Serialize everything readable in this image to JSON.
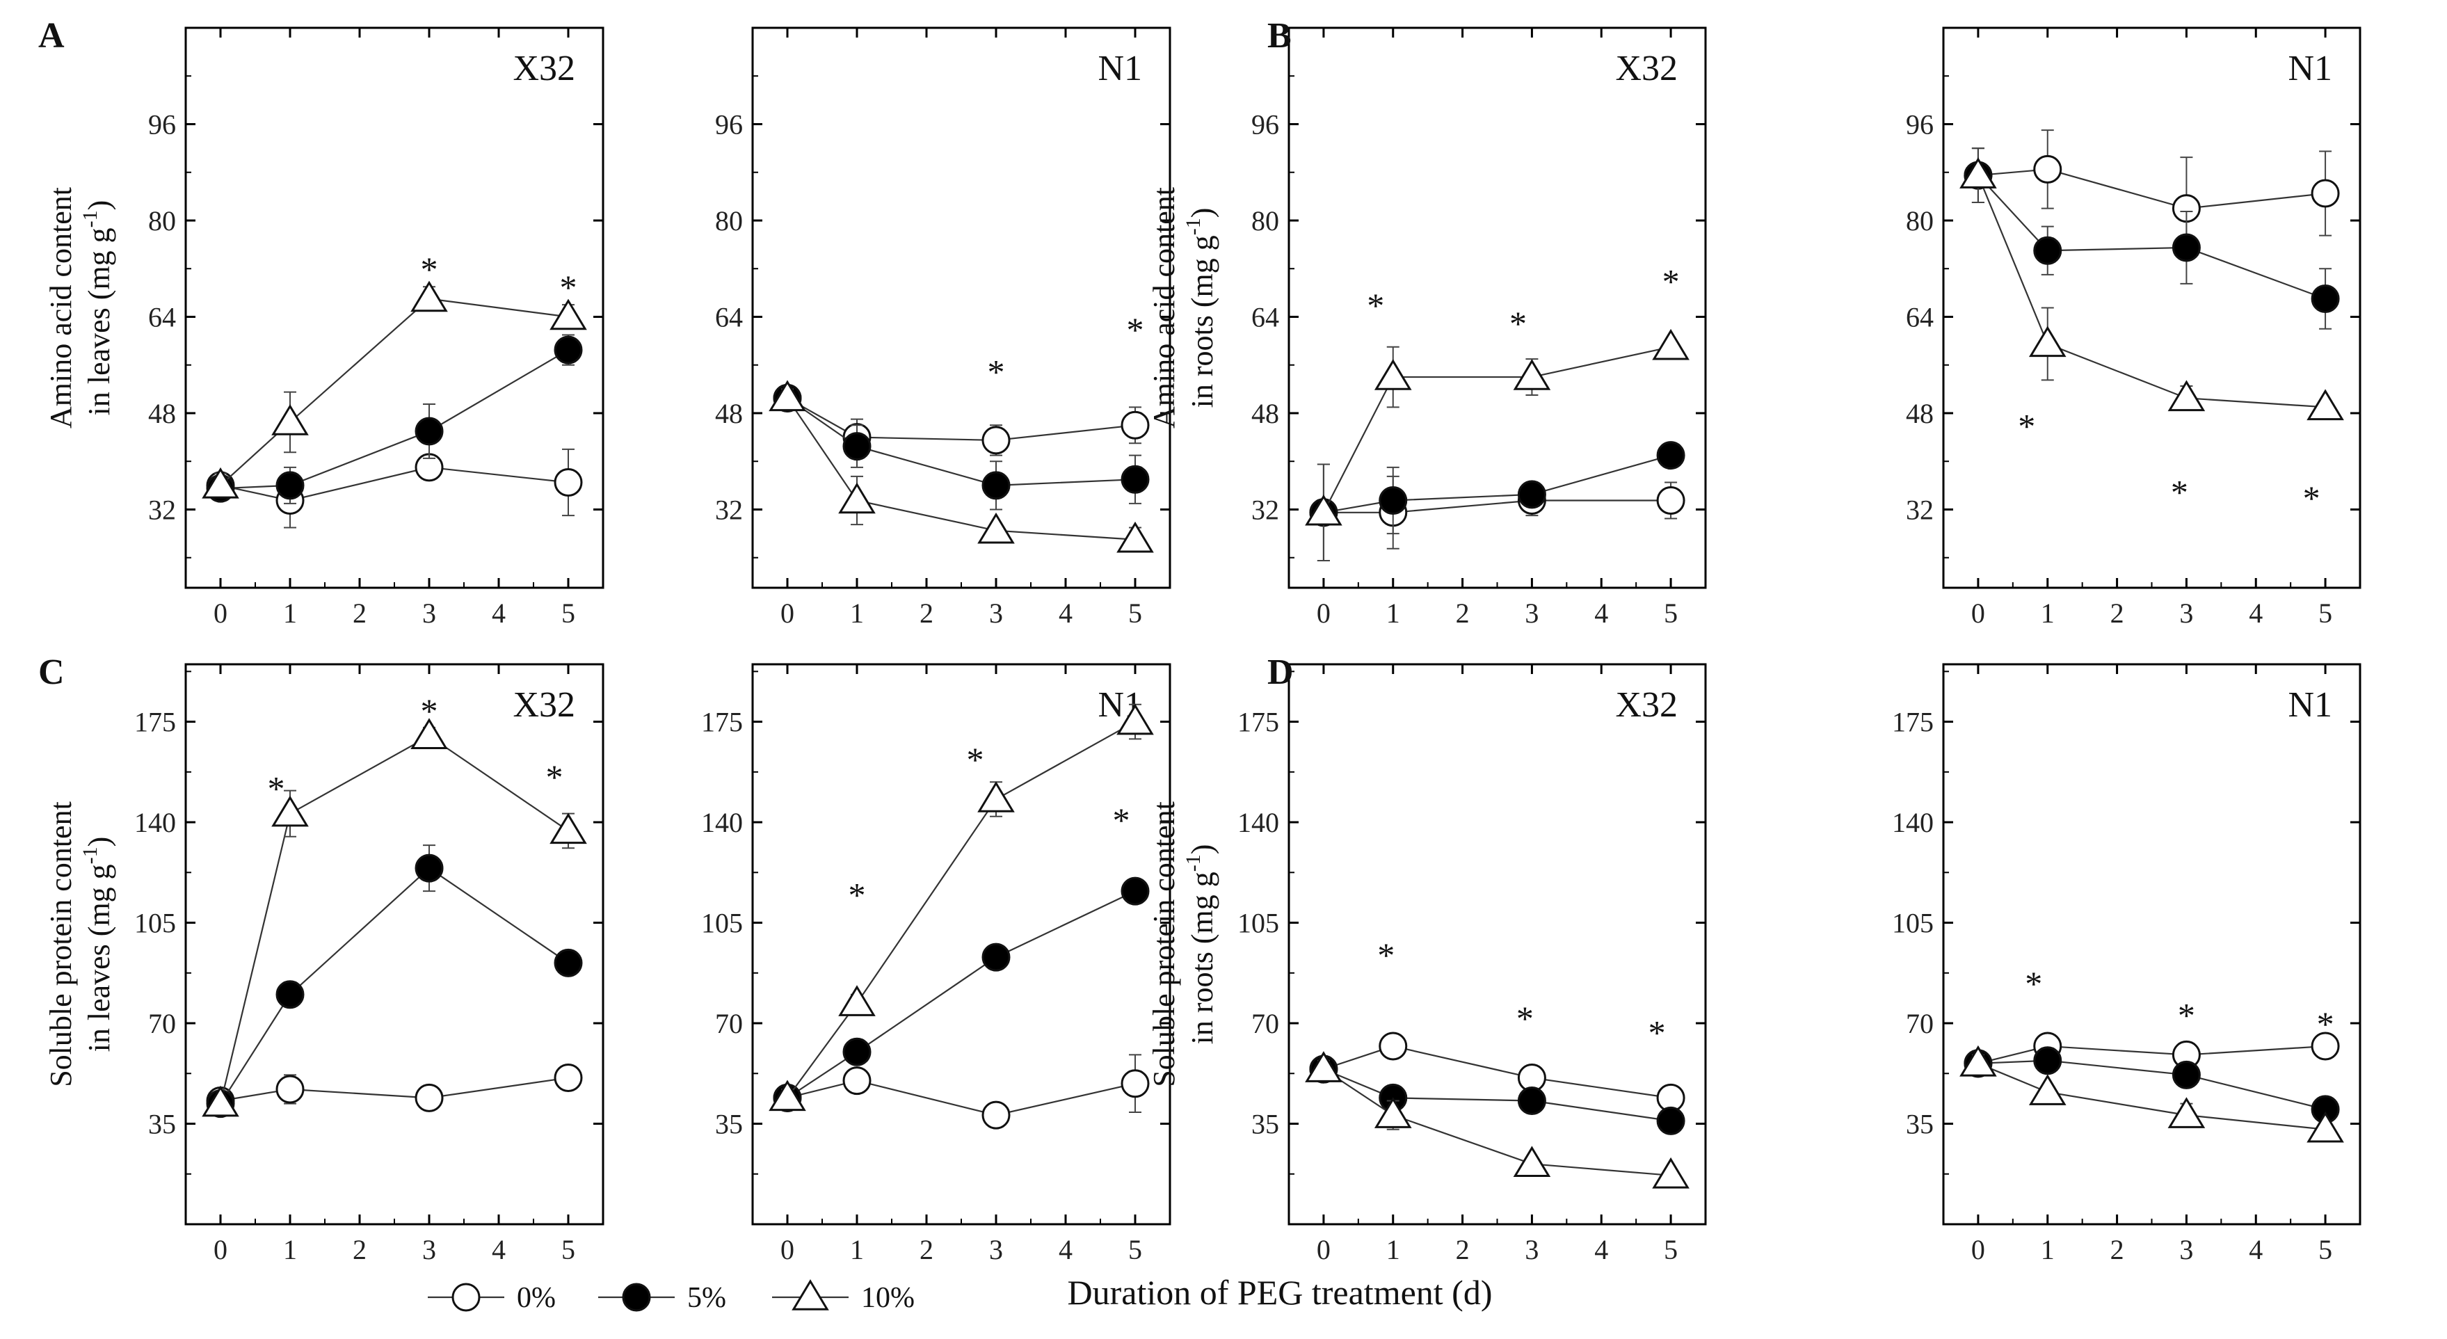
{
  "figure": {
    "x_axis_label": "Duration of PEG treatment (d)",
    "legend": [
      {
        "label": "0%",
        "marker": "open-circle"
      },
      {
        "label": "5%",
        "marker": "filled-circle"
      },
      {
        "label": "10%",
        "marker": "open-triangle"
      }
    ],
    "colors": {
      "line": "#333333",
      "marker_fill": "#000000",
      "axis": "#000000"
    }
  },
  "chart_data": [
    {
      "type": "line",
      "panel": "A",
      "title": "X32",
      "ylabel_line1": "Amino acid content",
      "ylabel_line2": "in leaves (mg g",
      "ylabel_sup": "-1",
      "ylabel_end": ")",
      "x": [
        0,
        1,
        3,
        5
      ],
      "xticks": [
        "0",
        "1",
        "2",
        "3",
        "4",
        "5"
      ],
      "xlim": [
        -0.5,
        5.5
      ],
      "yticks": [
        32,
        48,
        64,
        80,
        96
      ],
      "ylim": [
        19,
        112
      ],
      "series": [
        {
          "name": "0%",
          "values": [
            36,
            33.5,
            39,
            36.5
          ],
          "err": [
            1.5,
            4.5,
            2,
            5.5
          ]
        },
        {
          "name": "5%",
          "values": [
            35.5,
            36,
            45,
            58.5
          ],
          "err": [
            1.5,
            3,
            4.5,
            2.5
          ]
        },
        {
          "name": "10%",
          "values": [
            36,
            46.5,
            67,
            64
          ],
          "err": [
            2,
            5,
            2,
            2
          ]
        }
      ],
      "significance": [
        {
          "x": 3,
          "y": 72,
          "label": "*"
        },
        {
          "x": 5,
          "y": 69,
          "label": "*"
        }
      ]
    },
    {
      "type": "line",
      "panel": "",
      "title": "N1",
      "x": [
        0,
        1,
        3,
        5
      ],
      "xticks": [
        "0",
        "1",
        "2",
        "3",
        "4",
        "5"
      ],
      "xlim": [
        -0.5,
        5.5
      ],
      "yticks": [
        32,
        48,
        64,
        80,
        96
      ],
      "ylim": [
        19,
        112
      ],
      "series": [
        {
          "name": "0%",
          "values": [
            50.5,
            44,
            43.5,
            46
          ],
          "err": [
            1.5,
            3,
            2.5,
            3
          ]
        },
        {
          "name": "5%",
          "values": [
            50.5,
            42.5,
            36,
            37
          ],
          "err": [
            1.5,
            3.5,
            4,
            4
          ]
        },
        {
          "name": "10%",
          "values": [
            50.5,
            33.5,
            28.5,
            27
          ],
          "err": [
            1.5,
            4,
            1,
            2
          ]
        }
      ],
      "significance": [
        {
          "x": 3,
          "y": 55,
          "label": "*"
        },
        {
          "x": 5,
          "y": 62,
          "label": "*"
        }
      ]
    },
    {
      "type": "line",
      "panel": "B",
      "title": "X32",
      "ylabel_line1": "Amino acid content",
      "ylabel_line2": "in roots (mg g",
      "ylabel_sup": "-1",
      "ylabel_end": ")",
      "x": [
        0,
        1,
        3,
        5
      ],
      "xticks": [
        "0",
        "1",
        "2",
        "3",
        "4",
        "5"
      ],
      "xlim": [
        -0.5,
        5.5
      ],
      "yticks": [
        32,
        48,
        64,
        80,
        96
      ],
      "ylim": [
        19,
        112
      ],
      "series": [
        {
          "name": "0%",
          "values": [
            31.5,
            31.5,
            33.5,
            33.5
          ],
          "err": [
            8,
            6,
            2.5,
            3
          ]
        },
        {
          "name": "5%",
          "values": [
            31.5,
            33.5,
            34.5,
            41
          ],
          "err": [
            8,
            5.5,
            2,
            1.5
          ]
        },
        {
          "name": "10%",
          "values": [
            31.5,
            54,
            54,
            59
          ],
          "err": [
            8,
            5,
            3,
            1
          ]
        }
      ],
      "significance": [
        {
          "x": 0.75,
          "y": 66,
          "label": "*"
        },
        {
          "x": 2.8,
          "y": 63,
          "label": "*"
        },
        {
          "x": 5,
          "y": 70,
          "label": "*"
        }
      ]
    },
    {
      "type": "line",
      "panel": "",
      "title": "N1",
      "x": [
        0,
        1,
        3,
        5
      ],
      "xticks": [
        "0",
        "1",
        "2",
        "3",
        "4",
        "5"
      ],
      "xlim": [
        -0.5,
        5.5
      ],
      "yticks": [
        32,
        48,
        64,
        80,
        96
      ],
      "ylim": [
        19,
        112
      ],
      "series": [
        {
          "name": "0%",
          "values": [
            87.5,
            88.5,
            82,
            84.5
          ],
          "err": [
            4.5,
            6.5,
            8.5,
            7
          ]
        },
        {
          "name": "5%",
          "values": [
            87.5,
            75,
            75.5,
            67
          ],
          "err": [
            4.5,
            4,
            6,
            5
          ]
        },
        {
          "name": "10%",
          "values": [
            87.5,
            59.5,
            50.5,
            49
          ],
          "err": [
            4.5,
            6,
            2,
            1
          ]
        }
      ],
      "significance": [
        {
          "x": 0.7,
          "y": 46,
          "label": "*"
        },
        {
          "x": 2.9,
          "y": 35,
          "label": "*"
        },
        {
          "x": 4.8,
          "y": 34,
          "label": "*"
        }
      ]
    },
    {
      "type": "line",
      "panel": "C",
      "title": "X32",
      "ylabel_line1": "Soluble protein content",
      "ylabel_line2": "in leaves (mg g",
      "ylabel_sup": "-1",
      "ylabel_end": ")",
      "x": [
        0,
        1,
        3,
        5
      ],
      "xticks": [
        "0",
        "1",
        "2",
        "3",
        "4",
        "5"
      ],
      "xlim": [
        -0.5,
        5.5
      ],
      "yticks": [
        35,
        70,
        105,
        140,
        175
      ],
      "ylim": [
        0,
        195
      ],
      "series": [
        {
          "name": "0%",
          "values": [
            43,
            47,
            44,
            51
          ],
          "err": [
            2,
            5,
            3,
            4
          ]
        },
        {
          "name": "5%",
          "values": [
            42,
            80,
            124,
            91
          ],
          "err": [
            2,
            4,
            8,
            3
          ]
        },
        {
          "name": "10%",
          "values": [
            42,
            143,
            170,
            137
          ],
          "err": [
            2,
            8,
            3,
            6
          ]
        }
      ],
      "significance": [
        {
          "x": 0.8,
          "y": 152,
          "label": "*"
        },
        {
          "x": 3,
          "y": 179,
          "label": "*"
        },
        {
          "x": 4.8,
          "y": 156,
          "label": "*"
        }
      ]
    },
    {
      "type": "line",
      "panel": "",
      "title": "N1",
      "x": [
        0,
        1,
        3,
        5
      ],
      "xticks": [
        "0",
        "1",
        "2",
        "3",
        "4",
        "5"
      ],
      "xlim": [
        -0.5,
        5.5
      ],
      "yticks": [
        35,
        70,
        105,
        140,
        175
      ],
      "ylim": [
        0,
        195
      ],
      "series": [
        {
          "name": "0%",
          "values": [
            44,
            50,
            38,
            49
          ],
          "err": [
            3,
            3,
            2,
            10
          ]
        },
        {
          "name": "5%",
          "values": [
            44,
            60,
            93,
            116
          ],
          "err": [
            3,
            2,
            3,
            4
          ]
        },
        {
          "name": "10%",
          "values": [
            44,
            77,
            148,
            175
          ],
          "err": [
            3,
            3,
            6,
            6
          ]
        }
      ],
      "significance": [
        {
          "x": 1,
          "y": 115,
          "label": "*"
        },
        {
          "x": 2.7,
          "y": 162,
          "label": "*"
        },
        {
          "x": 4.8,
          "y": 141,
          "label": "*"
        }
      ]
    },
    {
      "type": "line",
      "panel": "D",
      "title": "X32",
      "ylabel_line1": "Soluble protein content",
      "ylabel_line2": "in roots (mg g",
      "ylabel_sup": "-1",
      "ylabel_end": ")",
      "x": [
        0,
        1,
        3,
        5
      ],
      "xticks": [
        "0",
        "1",
        "2",
        "3",
        "4",
        "5"
      ],
      "xlim": [
        -0.5,
        5.5
      ],
      "yticks": [
        35,
        70,
        105,
        140,
        175
      ],
      "ylim": [
        0,
        195
      ],
      "series": [
        {
          "name": "0%",
          "values": [
            54,
            62,
            51,
            44
          ],
          "err": [
            3,
            2,
            3,
            3
          ]
        },
        {
          "name": "5%",
          "values": [
            54,
            44,
            43,
            36
          ],
          "err": [
            3,
            3,
            2,
            3
          ]
        },
        {
          "name": "10%",
          "values": [
            54,
            38,
            21,
            17
          ],
          "err": [
            3,
            5,
            1,
            1
          ]
        }
      ],
      "significance": [
        {
          "x": 0.9,
          "y": 94,
          "label": "*"
        },
        {
          "x": 2.9,
          "y": 72,
          "label": "*"
        },
        {
          "x": 4.8,
          "y": 67,
          "label": "*"
        }
      ]
    },
    {
      "type": "line",
      "panel": "",
      "title": "N1",
      "x": [
        0,
        1,
        3,
        5
      ],
      "xticks": [
        "0",
        "1",
        "2",
        "3",
        "4",
        "5"
      ],
      "xlim": [
        -0.5,
        5.5
      ],
      "yticks": [
        35,
        70,
        105,
        140,
        175
      ],
      "ylim": [
        0,
        195
      ],
      "series": [
        {
          "name": "0%",
          "values": [
            56,
            62,
            59,
            62
          ],
          "err": [
            3,
            2,
            3,
            2
          ]
        },
        {
          "name": "5%",
          "values": [
            56,
            57,
            52,
            40
          ],
          "err": [
            3,
            3,
            4,
            3
          ]
        },
        {
          "name": "10%",
          "values": [
            56,
            46,
            38,
            33
          ],
          "err": [
            3,
            2,
            4,
            2
          ]
        }
      ],
      "significance": [
        {
          "x": 0.8,
          "y": 84,
          "label": "*"
        },
        {
          "x": 3,
          "y": 73,
          "label": "*"
        },
        {
          "x": 5,
          "y": 70,
          "label": "*"
        }
      ]
    }
  ]
}
